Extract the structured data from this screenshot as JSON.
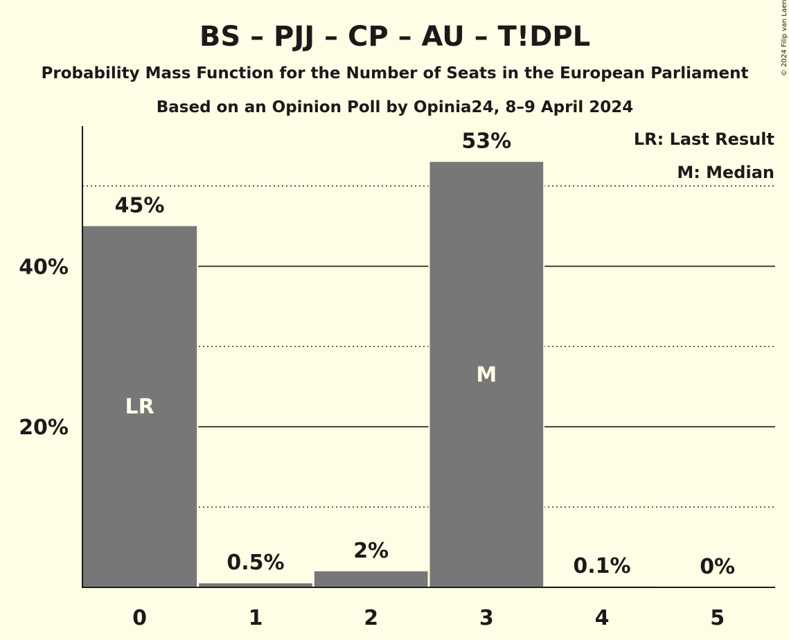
{
  "header": {
    "title": "BS – PJJ – CP – AU – T!DPL",
    "subtitle1": "Probability Mass Function for the Number of Seats in the European Parliament",
    "subtitle2": "Based on an Opinion Poll by Opinia24, 8–9 April 2024",
    "copyright": "© 2024 Filip van Laenen"
  },
  "legend": {
    "last_result": "LR: Last Result",
    "median": "M: Median"
  },
  "colors": {
    "background": "#fffde5",
    "bar": "#777777",
    "text": "#1a1a1a"
  },
  "chart_data": {
    "type": "bar",
    "categories": [
      "0",
      "1",
      "2",
      "3",
      "4",
      "5"
    ],
    "values": [
      45,
      0.5,
      2,
      53,
      0.1,
      0
    ],
    "value_labels": [
      "45%",
      "0.5%",
      "2%",
      "53%",
      "0.1%",
      "0%"
    ],
    "bar_markers": [
      "LR",
      "",
      "",
      "M",
      "",
      ""
    ],
    "ylim": [
      0,
      57.5
    ],
    "yticks_solid": [
      20,
      40
    ],
    "ytick_labels": [
      "20%",
      "40%"
    ],
    "yticks_dotted": [
      10,
      30,
      50
    ],
    "grid": true,
    "legend_position": "top-right"
  }
}
